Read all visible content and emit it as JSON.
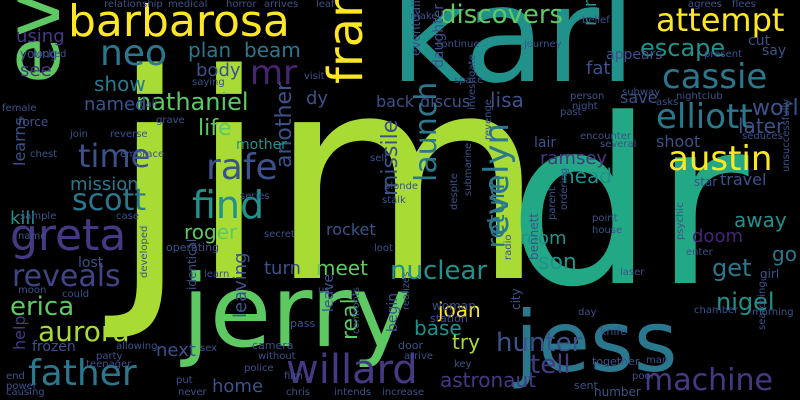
{
  "palette": {
    "lime": "#a8db34",
    "green": "#5ec962",
    "teal": "#21918c",
    "bluegreen": "#2a788e",
    "blue": "#3b528b",
    "indigo": "#443a83",
    "purple": "#482475",
    "dark": "#440154",
    "yellow": "#fde725",
    "seafoam": "#22a884",
    "slate": "#414487",
    "mint": "#35b779"
  },
  "words": [
    {
      "text": "jim"
    },
    {
      "text": "dr"
    },
    {
      "text": "karl"
    },
    {
      "text": "jerry"
    },
    {
      "text": "jess"
    },
    {
      "text": "evil"
    },
    {
      "text": "barbarosa"
    },
    {
      "text": "france"
    },
    {
      "text": "greta"
    },
    {
      "text": "neo"
    },
    {
      "text": "attempt"
    },
    {
      "text": "cassie"
    },
    {
      "text": "elliott"
    },
    {
      "text": "rafe"
    },
    {
      "text": "find"
    },
    {
      "text": "austin"
    },
    {
      "text": "time"
    },
    {
      "text": "scott"
    },
    {
      "text": "father"
    },
    {
      "text": "willard"
    },
    {
      "text": "aurora"
    },
    {
      "text": "reveals"
    },
    {
      "text": "machine"
    },
    {
      "text": "evelyn"
    },
    {
      "text": "launch"
    },
    {
      "text": "discovers"
    },
    {
      "text": "escape"
    },
    {
      "text": "mr"
    },
    {
      "text": "nathaniel"
    },
    {
      "text": "hunter"
    },
    {
      "text": "erica"
    },
    {
      "text": "mission"
    },
    {
      "text": "nuclear"
    },
    {
      "text": "return"
    },
    {
      "text": "tell"
    },
    {
      "text": "plan"
    },
    {
      "text": "beam"
    },
    {
      "text": "body"
    },
    {
      "text": "show"
    },
    {
      "text": "named"
    },
    {
      "text": "life"
    },
    {
      "text": "world"
    },
    {
      "text": "later"
    },
    {
      "text": "ramsey"
    },
    {
      "text": "head"
    },
    {
      "text": "missile"
    },
    {
      "text": "another"
    },
    {
      "text": "roger"
    },
    {
      "text": "kill"
    },
    {
      "text": "learns"
    },
    {
      "text": "meet"
    },
    {
      "text": "turn"
    },
    {
      "text": "son"
    },
    {
      "text": "get"
    },
    {
      "text": "nigel"
    },
    {
      "text": "go"
    },
    {
      "text": "doom"
    },
    {
      "text": "away"
    },
    {
      "text": "room"
    },
    {
      "text": "joan"
    },
    {
      "text": "base"
    },
    {
      "text": "try"
    },
    {
      "text": "real"
    },
    {
      "text": "next"
    },
    {
      "text": "home"
    },
    {
      "text": "astronaut"
    },
    {
      "text": "frozen"
    },
    {
      "text": "help"
    },
    {
      "text": "leaving"
    },
    {
      "text": "lost"
    },
    {
      "text": "mother"
    },
    {
      "text": "lisa"
    },
    {
      "text": "back"
    },
    {
      "text": "discus"
    },
    {
      "text": "save"
    },
    {
      "text": "fat"
    },
    {
      "text": "run"
    },
    {
      "text": "using"
    },
    {
      "text": "see"
    },
    {
      "text": "dy"
    },
    {
      "text": "rocket"
    },
    {
      "text": "leave"
    },
    {
      "text": "begin"
    },
    {
      "text": "shoot"
    },
    {
      "text": "star"
    },
    {
      "text": "travel"
    },
    {
      "text": "lair"
    },
    {
      "text": "appears"
    },
    {
      "text": "daughter"
    },
    {
      "text": "eventually"
    },
    {
      "text": "young"
    },
    {
      "text": "force"
    },
    {
      "text": "woman"
    },
    {
      "text": "city"
    },
    {
      "text": "bennett"
    },
    {
      "text": "number"
    },
    {
      "text": "sent"
    },
    {
      "text": "knife"
    },
    {
      "text": "together"
    },
    {
      "text": "man"
    },
    {
      "text": "door"
    },
    {
      "text": "station"
    },
    {
      "text": "pass"
    },
    {
      "text": "camera"
    },
    {
      "text": "identical"
    },
    {
      "text": "operating"
    },
    {
      "text": "sex"
    },
    {
      "text": "police"
    },
    {
      "text": "without"
    },
    {
      "text": "chris"
    },
    {
      "text": "intends"
    },
    {
      "text": "increase"
    },
    {
      "text": "arrive"
    },
    {
      "text": "key"
    },
    {
      "text": "teenager"
    },
    {
      "text": "relationship"
    },
    {
      "text": "medical"
    },
    {
      "text": "horror"
    },
    {
      "text": "arrives"
    },
    {
      "text": "leaf"
    },
    {
      "text": "make"
    },
    {
      "text": "flees"
    },
    {
      "text": "agrees"
    },
    {
      "text": "cut"
    },
    {
      "text": "say"
    },
    {
      "text": "present"
    },
    {
      "text": "nightclub"
    },
    {
      "text": "subway"
    },
    {
      "text": "asks"
    },
    {
      "text": "several"
    },
    {
      "text": "encounter"
    },
    {
      "text": "past"
    },
    {
      "text": "reverse"
    },
    {
      "text": "chest"
    },
    {
      "text": "embrace"
    },
    {
      "text": "join"
    },
    {
      "text": "female"
    },
    {
      "text": "locked"
    },
    {
      "text": "saying"
    },
    {
      "text": "visit"
    },
    {
      "text": "continue"
    },
    {
      "text": "journey"
    },
    {
      "text": "belief"
    },
    {
      "text": "person"
    },
    {
      "text": "night"
    },
    {
      "text": "self"
    },
    {
      "text": "blonde"
    },
    {
      "text": "stalk"
    },
    {
      "text": "series"
    },
    {
      "text": "secret"
    },
    {
      "text": "case"
    },
    {
      "text": "sample"
    },
    {
      "text": "name"
    },
    {
      "text": "moon"
    },
    {
      "text": "could"
    },
    {
      "text": "developed"
    },
    {
      "text": "learn"
    },
    {
      "text": "loot"
    },
    {
      "text": "despite"
    },
    {
      "text": "submarine"
    },
    {
      "text": "parent"
    },
    {
      "text": "ordering"
    },
    {
      "text": "point"
    },
    {
      "text": "house"
    },
    {
      "text": "laser"
    },
    {
      "text": "enter"
    },
    {
      "text": "girl"
    },
    {
      "text": "psychic"
    },
    {
      "text": "chamber"
    },
    {
      "text": "morning"
    },
    {
      "text": "searching"
    },
    {
      "text": "unsuccessfully"
    },
    {
      "text": "seduces"
    },
    {
      "text": "radio"
    },
    {
      "text": "day"
    },
    {
      "text": "confronts"
    },
    {
      "text": "realizes"
    },
    {
      "text": "us"
    },
    {
      "text": "film"
    },
    {
      "text": "allowing"
    },
    {
      "text": "party"
    },
    {
      "text": "power"
    },
    {
      "text": "causing"
    },
    {
      "text": "end"
    },
    {
      "text": "put"
    },
    {
      "text": "never"
    },
    {
      "text": "poor"
    },
    {
      "text": "space"
    },
    {
      "text": "investigate"
    },
    {
      "text": "revenge"
    },
    {
      "text": "call"
    },
    {
      "text": "grave"
    }
  ]
}
